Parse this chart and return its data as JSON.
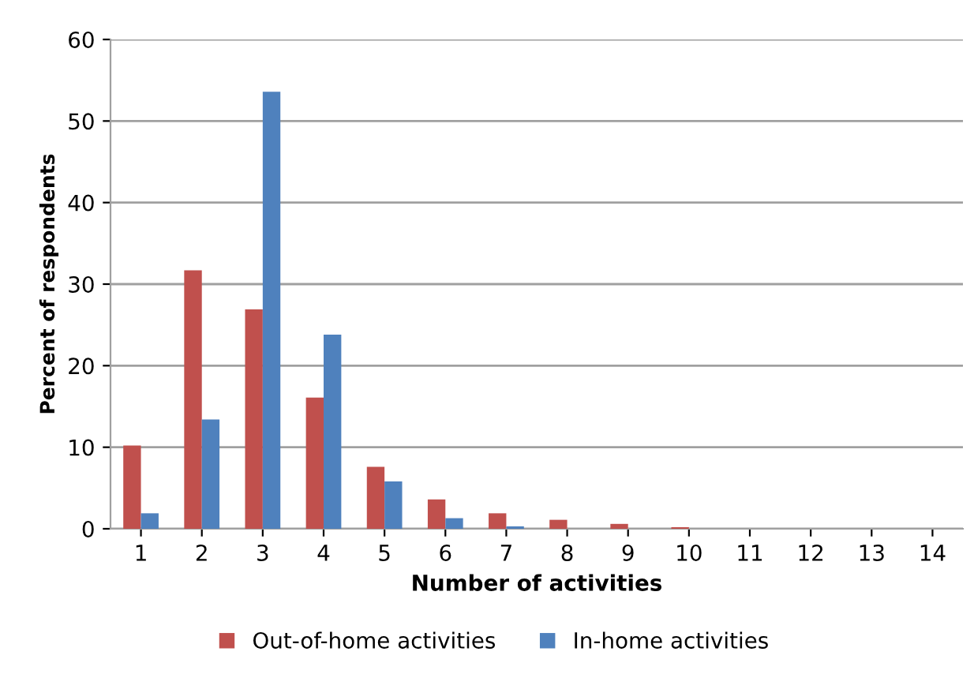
{
  "chart_data": {
    "type": "bar",
    "xlabel": "Number of activities",
    "ylabel": "Percent of respondents",
    "categories": [
      "1",
      "2",
      "3",
      "4",
      "5",
      "6",
      "7",
      "8",
      "9",
      "10",
      "11",
      "12",
      "13",
      "14"
    ],
    "series": [
      {
        "name": "Out-of-home activities",
        "color": "#c0504d",
        "values": [
          10.2,
          31.7,
          26.9,
          16.1,
          7.6,
          3.6,
          1.9,
          1.1,
          0.6,
          0.2,
          0,
          0,
          0,
          0
        ]
      },
      {
        "name": "In-home activities",
        "color": "#4f81bd",
        "values": [
          1.9,
          13.4,
          53.6,
          23.8,
          5.8,
          1.3,
          0.3,
          0,
          0,
          0,
          0,
          0,
          0,
          0
        ]
      }
    ],
    "ylim": [
      0,
      60
    ],
    "yticks": [
      0,
      10,
      20,
      30,
      40,
      50,
      60
    ],
    "grid": "y",
    "legend": "bottom"
  }
}
